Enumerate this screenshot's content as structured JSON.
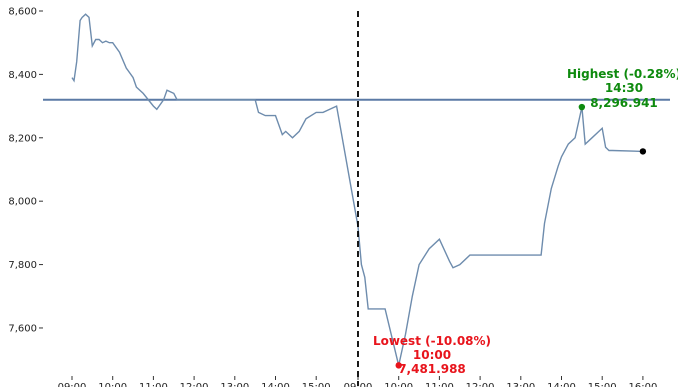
{
  "chart_data": {
    "type": "line",
    "title": "",
    "xlabel": "",
    "ylabel": "",
    "ylim": [
      7480,
      8600
    ],
    "yticks": [
      7600,
      7800,
      8000,
      8200,
      8400,
      8600
    ],
    "ytick_labels": [
      "7,600",
      "7,800",
      "8,000",
      "8,200",
      "8,400",
      "8,600"
    ],
    "xtick_labels": [
      "09:00",
      "10:00",
      "11:00",
      "12:00",
      "13:00",
      "14:00",
      "15:00",
      "09:00",
      "10:00",
      "11:00",
      "12:00",
      "13:00",
      "14:00",
      "15:00",
      "16:00"
    ],
    "grid": false,
    "legend": "none",
    "reference_line": 8320,
    "session_divider_after": "Day 1 15:30",
    "series": [
      {
        "x": [
          "D1 09:00",
          "D1 09:03",
          "D1 09:07",
          "D1 09:12",
          "D1 09:15",
          "D1 09:20",
          "D1 09:25",
          "D1 09:30",
          "D1 09:35",
          "D1 09:40",
          "D1 09:45",
          "D1 09:50",
          "D1 09:55",
          "D1 10:00",
          "D1 10:10",
          "D1 10:20",
          "D1 10:30",
          "D1 10:35",
          "D1 10:45",
          "D1 11:00",
          "D1 11:05",
          "D1 11:15",
          "D1 11:20",
          "D1 11:30",
          "D1 11:35",
          "D1 11:45",
          "D1 11:55",
          "D1 12:00",
          "D1 13:30",
          "D1 13:35",
          "D1 13:45",
          "D1 14:00",
          "D1 14:10",
          "D1 14:15",
          "D1 14:25",
          "D1 14:35",
          "D1 14:45",
          "D1 15:00",
          "D1 15:10",
          "D1 15:20",
          "D1 15:30",
          "D2 09:00",
          "D2 09:05",
          "D2 09:10",
          "D2 09:15",
          "D2 09:25",
          "D2 09:40",
          "D2 09:58",
          "D2 10:00",
          "D2 10:10",
          "D2 10:20",
          "D2 10:30",
          "D2 10:45",
          "D2 11:00",
          "D2 11:15",
          "D2 11:20",
          "D2 11:30",
          "D2 11:45",
          "D2 12:00",
          "D2 13:30",
          "D2 13:35",
          "D2 13:45",
          "D2 13:55",
          "D2 14:00",
          "D2 14:10",
          "D2 14:20",
          "D2 14:30",
          "D2 14:35",
          "D2 14:45",
          "D2 15:00",
          "D2 15:05",
          "D2 15:10",
          "D2 15:15",
          "D2 16:00"
        ],
        "values": [
          8390,
          8380,
          8440,
          8570,
          8580,
          8590,
          8580,
          8490,
          8510,
          8510,
          8500,
          8505,
          8500,
          8500,
          8470,
          8420,
          8390,
          8360,
          8340,
          8300,
          8290,
          8320,
          8350,
          8340,
          8320,
          8320,
          8320,
          8320,
          8320,
          8280,
          8270,
          8270,
          8210,
          8220,
          8200,
          8220,
          8260,
          8280,
          8280,
          8290,
          8300,
          7920,
          7800,
          7760,
          7660,
          7660,
          7660,
          7500,
          7482,
          7580,
          7700,
          7800,
          7850,
          7880,
          7810,
          7790,
          7800,
          7830,
          7830,
          7830,
          7930,
          8040,
          8110,
          8140,
          8180,
          8200,
          8297,
          8180,
          8200,
          8230,
          8170,
          8160,
          8160,
          8157
        ]
      }
    ],
    "colors": {
      "line": "#6e8cad",
      "reference": "#5b7aa5",
      "highest": "#0e8a0e",
      "lowest": "#e8141c",
      "last_point": "#000000",
      "divider": "#000000"
    },
    "annotations": [
      {
        "id": "highest",
        "lines": [
          "Highest (-0.28%)",
          "14:30",
          "8,296.941"
        ],
        "x": "D2 14:30",
        "y": 8296.941
      },
      {
        "id": "lowest",
        "lines": [
          "Lowest (-10.08%)",
          "10:00",
          "7,481.988"
        ],
        "x": "D2 10:00",
        "y": 7481.988
      }
    ],
    "last_point": {
      "x": "D2 16:00",
      "y": 8157
    }
  }
}
